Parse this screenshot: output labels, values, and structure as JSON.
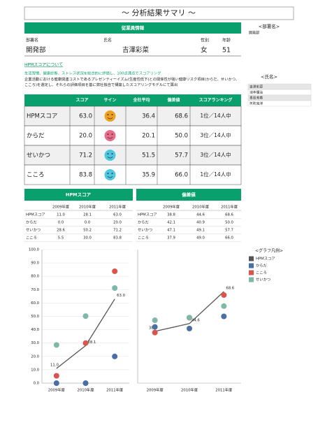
{
  "title": "～ 分析結果サマリ ～",
  "employee": {
    "header": "従業員情報",
    "labels": [
      "部署名",
      "氏名",
      "性別",
      "年齢"
    ],
    "values": [
      "開発部",
      "吉澤彩菜",
      "女",
      "51"
    ]
  },
  "side": {
    "dept_title": "<部署名>",
    "dept": "開発部",
    "name_title": "<氏名>",
    "names": [
      "吉澤彩菜",
      "池本優治",
      "青島芳香",
      "矢吹克洋"
    ]
  },
  "about": {
    "link": "HPMスコアについて",
    "summary": "生活習慣、健康診断、ストレス状況を総合的に評価し、100点満点でスコアリング",
    "detail": "企業活動における健康関連コストであるプレゼンティーイズム(生産性低下)との関係性が強い健康リスク項目(からだ、せいかつ、こころ)を選定し、それらの評価項目を基に弊社独自で構築したスコアリングモデルにて算出"
  },
  "score_table": {
    "headers": [
      "スコア",
      "サイン",
      "全社平均",
      "偏差値",
      "スコアランキング"
    ],
    "rows": [
      [
        "HPMスコア",
        "63.0",
        "36.4",
        "68.6",
        "1位／14人中"
      ],
      [
        "からだ",
        "20.0",
        "20.1",
        "50.0",
        "3位／14人中"
      ],
      [
        "せいかつ",
        "71.2",
        "51.5",
        "57.7",
        "3位／14人中"
      ],
      [
        "こころ",
        "83.8",
        "35.9",
        "66.0",
        "1位／14人中"
      ]
    ]
  },
  "history_tables": [
    {
      "title": "HPMスコア",
      "headers": [
        "2009年度",
        "2010年度",
        "2011年度"
      ],
      "rows": [
        [
          "HPMスコア",
          "11.0",
          "28.1",
          "63.0"
        ],
        [
          "からだ",
          "0.0",
          "0.0",
          "20.0"
        ],
        [
          "せいかつ",
          "28.6",
          "50.2",
          "71.2"
        ],
        [
          "こころ",
          "5.5",
          "30.0",
          "83.8"
        ]
      ]
    },
    {
      "title": "偏差値",
      "headers": [
        "2009年度",
        "2010年度",
        "2011年度"
      ],
      "rows": [
        [
          "HPMスコア",
          "38.8",
          "44.6",
          "68.6"
        ],
        [
          "からだ",
          "42.1",
          "40.9",
          "50.0"
        ],
        [
          "せいかつ",
          "47.1",
          "49.1",
          "57.7"
        ],
        [
          "こころ",
          "37.9",
          "49.0",
          "66.0"
        ]
      ]
    }
  ],
  "legend_title": "<グラフ凡例>",
  "chart_data": [
    {
      "type": "line",
      "categories": [
        "2009年度",
        "2010年度",
        "2011年度"
      ],
      "ylim": [
        0,
        100
      ],
      "grid": true,
      "yticks": [
        {
          "value": 0,
          "label": "0.0"
        },
        {
          "value": 10,
          "label": "10.0"
        },
        {
          "value": 20,
          "label": "20.0"
        },
        {
          "value": 30,
          "label": "30.0"
        },
        {
          "value": 40,
          "label": "40.0"
        },
        {
          "value": 50,
          "label": "50.0"
        },
        {
          "value": 60,
          "label": "60.0"
        },
        {
          "value": 70,
          "label": "70.0"
        },
        {
          "value": 80,
          "label": "80.0"
        },
        {
          "value": 90,
          "label": "90.0"
        },
        {
          "value": 100,
          "label": "100.0"
        }
      ],
      "series": [
        {
          "name": "HPMスコア",
          "color": "#555555",
          "line": true,
          "values": [
            11.0,
            28.1,
            63.0
          ],
          "value_labels": [
            "11.0",
            "28.1",
            "63.0"
          ]
        },
        {
          "name": "からだ",
          "color": "#4a6fa5",
          "line": false,
          "values": [
            0.0,
            0.0,
            20.0
          ]
        },
        {
          "name": "こころ",
          "color": "#d9534f",
          "line": false,
          "values": [
            5.5,
            30.0,
            83.8
          ]
        },
        {
          "name": "せいかつ",
          "color": "#7fb8a8",
          "line": false,
          "values": [
            28.6,
            50.2,
            71.2
          ]
        }
      ]
    },
    {
      "type": "line",
      "categories": [
        "2009年度",
        "2010年度",
        "2011年度"
      ],
      "ylim": [
        0,
        100
      ],
      "grid": false,
      "series": [
        {
          "name": "HPMスコア",
          "color": "#555555",
          "line": true,
          "values": [
            38.8,
            44.6,
            68.6
          ],
          "value_labels": [
            "38.8",
            "44.6",
            "68.6"
          ]
        },
        {
          "name": "からだ",
          "color": "#4a6fa5",
          "line": false,
          "values": [
            42.1,
            40.9,
            50.0
          ]
        },
        {
          "name": "こころ",
          "color": "#d9534f",
          "line": false,
          "values": [
            37.9,
            49.0,
            66.0
          ]
        },
        {
          "name": "せいかつ",
          "color": "#7fb8a8",
          "line": false,
          "values": [
            47.1,
            49.1,
            57.7
          ]
        }
      ]
    }
  ]
}
